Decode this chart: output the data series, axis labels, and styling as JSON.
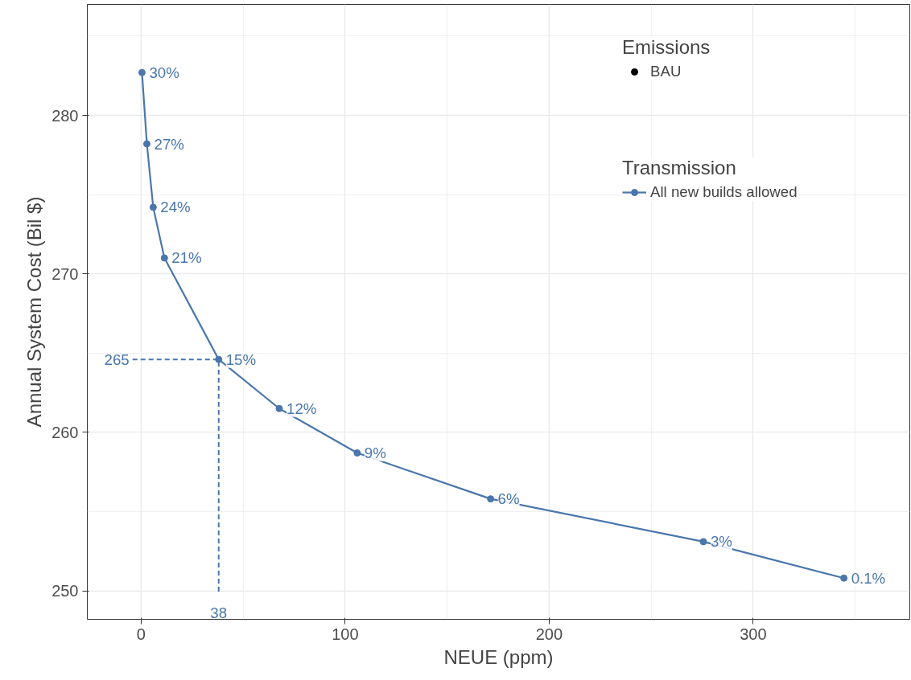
{
  "chart_data": {
    "type": "line",
    "xlabel": "NEUE (ppm)",
    "ylabel": "Annual System Cost (Bil $)",
    "legend_title": "Transmission",
    "legend": "top right",
    "grid": true,
    "marker": "circle",
    "line_style": "solid",
    "annotations": [
      "Emissions",
      {
        "text": "30%",
        "x": 0.4,
        "y": 282.7
      },
      {
        "text": "27%",
        "x": 2.8,
        "y": 278.2
      },
      {
        "text": "24%",
        "x": 5.9,
        "y": 274.2
      },
      {
        "text": "21%",
        "x": 11.4,
        "y": 271.0
      },
      {
        "text": "15%",
        "x": 38,
        "y": 264.6
      },
      {
        "text": "12%",
        "x": 67.7,
        "y": 261.5
      },
      {
        "text": "9%",
        "x": 105.9,
        "y": 258.7
      },
      {
        "text": "6%",
        "x": 171.3,
        "y": 255.8
      },
      {
        "text": "3%",
        "x": 275.6,
        "y": 253.1
      },
      {
        "text": "0.1%",
        "x": 344.5,
        "y": 250.8
      }
    ],
    "xlim": [
      -26.4,
      376.8
    ],
    "ylim": [
      248.2,
      287.0
    ],
    "xticks": [
      0,
      100,
      200,
      300
    ],
    "yticks": [
      250,
      260,
      270,
      280
    ],
    "ref_lines": [
      {
        "axis": "y",
        "value": 264.6,
        "label": "265",
        "color": "#4a76ab",
        "line_style": "dashed"
      },
      {
        "axis": "x",
        "value": 38,
        "label": "38",
        "color": "#4a76ab",
        "line_style": "dashed"
      }
    ],
    "series": [
      {
        "name": "All new builds allowed",
        "color": "#4a76ab",
        "x": [
          0.4,
          2.8,
          5.9,
          11.4,
          38,
          67.7,
          105.9,
          171.3,
          275.6,
          344.5
        ],
        "values": [
          282.7,
          278.2,
          274.2,
          271.0,
          264.6,
          261.5,
          258.7,
          255.8,
          253.1,
          250.8
        ]
      },
      {
        "name": "BAU",
        "type": "scatter",
        "color": "#000000"
      }
    ]
  }
}
